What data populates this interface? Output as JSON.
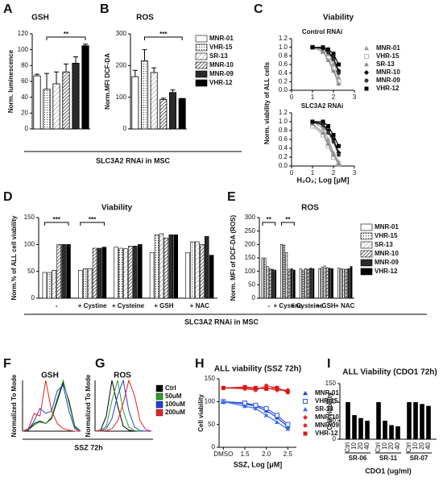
{
  "chart_data": [
    {
      "type": "bar",
      "panel": "A",
      "title": "GSH",
      "ylabel": "Norm. luminescence",
      "values": [
        67,
        50,
        57,
        72,
        83,
        105
      ],
      "errors": [
        2,
        20,
        15,
        10,
        8,
        2
      ],
      "ylim": [
        0,
        120
      ],
      "yticks": [
        0,
        20,
        40,
        60,
        80,
        100,
        120
      ],
      "annotations": [
        "**"
      ],
      "xlabel": "SLC3A2 RNAi in MSC"
    },
    {
      "type": "bar",
      "panel": "B",
      "title": "ROS",
      "ylabel": "Norm.MFI DCF-DA",
      "categories": [
        "MNR-01",
        "VHR-15",
        "SR-13",
        "MNR-10",
        "MNR-09",
        "VHR-12"
      ],
      "values": [
        165,
        215,
        178,
        93,
        115,
        96
      ],
      "errors": [
        20,
        35,
        15,
        4,
        8,
        0
      ],
      "ylim": [
        0,
        300
      ],
      "yticks": [
        0,
        100,
        200,
        300
      ],
      "annotations": [
        "***"
      ]
    },
    {
      "type": "line",
      "panel": "C",
      "title": "Viability",
      "subtitle": "Control RNAi",
      "ylabel": "Norm. viability of ALL cells",
      "x": [
        1,
        1.5,
        1.75,
        2,
        2.25
      ],
      "series": [
        {
          "name": "MNR-01",
          "color": "#9a9a9a",
          "values": [
            1,
            0.95,
            0.85,
            0.6,
            0.3
          ]
        },
        {
          "name": "VHR-15",
          "color": "#b5b5b5",
          "values": [
            1,
            0.9,
            0.75,
            0.5,
            0.2
          ]
        },
        {
          "name": "SR-13",
          "color": "#8a8a8a",
          "values": [
            1,
            0.9,
            0.7,
            0.45,
            0.15
          ]
        },
        {
          "name": "MNR-10",
          "color": "#000000",
          "values": [
            1,
            0.98,
            0.9,
            0.75,
            0.45
          ]
        },
        {
          "name": "MNR-09",
          "color": "#333333",
          "values": [
            1,
            0.97,
            0.88,
            0.72,
            0.4
          ]
        },
        {
          "name": "VHR-12",
          "color": "#000000",
          "values": [
            1,
            1,
            0.95,
            0.85,
            0.6
          ]
        }
      ],
      "xlim": [
        0,
        3
      ],
      "xticks": [
        0,
        1,
        2,
        3
      ],
      "ylim": [
        0,
        1.2
      ],
      "yticks": [
        {
          "value": 0,
          "label": "0.0"
        },
        0.2,
        0.4,
        0.6,
        0.8,
        {
          "value": 1,
          "label": "1.0"
        },
        1.2
      ]
    },
    {
      "type": "line",
      "subtitle": "SLC3A2 RNAi",
      "xlabel": "H₂O₂; Log [μM]",
      "x": [
        1,
        1.5,
        1.75,
        2,
        2.25
      ],
      "series": [
        {
          "color": "#9a9a9a",
          "values": [
            1,
            0.85,
            0.6,
            0.3,
            0.1
          ]
        },
        {
          "color": "#b5b5b5",
          "values": [
            0.9,
            0.7,
            0.45,
            0.2,
            0.05
          ]
        },
        {
          "color": "#8a8a8a",
          "values": [
            0.95,
            0.75,
            0.5,
            0.25,
            0.05
          ]
        },
        {
          "color": "#000000",
          "values": [
            1,
            0.95,
            0.8,
            0.6,
            0.3
          ]
        },
        {
          "color": "#333333",
          "values": [
            1,
            0.92,
            0.75,
            0.55,
            0.25
          ]
        },
        {
          "color": "#000000",
          "values": [
            1,
            1,
            0.9,
            0.7,
            0.45
          ]
        }
      ],
      "xlim": [
        0,
        3
      ],
      "xticks": [
        0,
        1,
        2,
        3
      ],
      "ylim": [
        0,
        1.2
      ],
      "yticks": [
        {
          "value": 0,
          "label": "0.0"
        },
        0.2,
        0.4,
        0.6,
        0.8,
        {
          "value": 1,
          "label": "1.0"
        },
        1.2
      ]
    },
    {
      "type": "bar",
      "panel": "D",
      "title": "Viability",
      "ylabel": "Norm.% of ALL cell viability",
      "categories": [
        "-",
        "+ Cystine",
        "+ Cysteine",
        "+ GSH",
        "+ NAC"
      ],
      "series": [
        {
          "values": [
            48,
            52,
            95,
            85,
            85
          ]
        },
        {
          "values": [
            48,
            55,
            93,
            118,
            105
          ]
        },
        {
          "values": [
            52,
            55,
            92,
            120,
            105
          ]
        },
        {
          "values": [
            100,
            93,
            97,
            112,
            100
          ]
        },
        {
          "values": [
            100,
            93,
            97,
            118,
            115
          ]
        },
        {
          "values": [
            100,
            95,
            100,
            118,
            80
          ]
        }
      ],
      "ylim": [
        0,
        150
      ],
      "yticks": [
        0,
        50,
        100,
        150
      ],
      "annotations": [
        "***",
        "***"
      ],
      "xlabel": "SLC3A2 RNAi in MSC"
    },
    {
      "type": "bar",
      "panel": "E",
      "title": "ROS",
      "ylabel": "Norm. MFI of DCF-DA (ROS)",
      "categories": [
        "-",
        "+ Cystine",
        "+ Cysteine",
        "+ GSH",
        "+ NAC"
      ],
      "series": [
        {
          "name": "MNR-01",
          "values": [
            150,
            200,
            110,
            110,
            112
          ]
        },
        {
          "name": "VHR-15",
          "values": [
            150,
            198,
            105,
            115,
            110
          ]
        },
        {
          "name": "SR-13",
          "values": [
            118,
            170,
            110,
            120,
            108
          ]
        },
        {
          "name": "MNR-10",
          "values": [
            110,
            108,
            108,
            113,
            108
          ]
        },
        {
          "name": "MNR-09",
          "values": [
            107,
            110,
            112,
            112,
            110
          ]
        },
        {
          "name": "VHR-12",
          "values": [
            105,
            105,
            110,
            110,
            118
          ]
        }
      ],
      "ylim": [
        0,
        300
      ],
      "yticks": [
        0,
        50,
        100,
        150,
        200,
        250,
        300
      ],
      "annotations": [
        "**",
        "**"
      ]
    },
    {
      "type": "line",
      "panel": "F",
      "title": "GSH",
      "ylabel": "Normalized To Mode",
      "xlabel": "SSZ 72h",
      "x": [
        0,
        1,
        2,
        3,
        4,
        5,
        6,
        7,
        8,
        9,
        10
      ],
      "series": [
        {
          "color": "#000000",
          "values": [
            0,
            2,
            15,
            20,
            15,
            25,
            60,
            95,
            60,
            10,
            0
          ]
        },
        {
          "color": "#2ca02c",
          "values": [
            0,
            2,
            12,
            18,
            15,
            28,
            65,
            100,
            55,
            8,
            0
          ]
        },
        {
          "color": "#1f3fd6",
          "values": [
            0,
            3,
            20,
            45,
            35,
            40,
            80,
            90,
            40,
            5,
            0
          ]
        },
        {
          "color": "#e8202a",
          "values": [
            0,
            5,
            35,
            30,
            100,
            40,
            15,
            5,
            2,
            0,
            0
          ]
        }
      ],
      "xlim": [
        0,
        10
      ],
      "ylim": [
        0,
        100
      ]
    },
    {
      "type": "line",
      "panel": "G",
      "title": "ROS",
      "ylabel": "Normalized To Mode",
      "x": [
        0,
        1,
        2,
        3,
        4,
        5,
        6,
        7,
        8,
        9,
        10
      ],
      "series": [
        {
          "name": "Ctrl",
          "color": "#000000",
          "values": [
            0,
            2,
            30,
            100,
            50,
            10,
            2,
            0,
            0,
            0,
            0
          ]
        },
        {
          "name": "50uM",
          "color": "#2ca02c",
          "values": [
            0,
            1,
            10,
            60,
            100,
            40,
            8,
            1,
            0,
            0,
            0
          ]
        },
        {
          "name": "100uM",
          "color": "#1f3fd6",
          "values": [
            0,
            0,
            5,
            25,
            70,
            100,
            40,
            8,
            1,
            0,
            0
          ]
        },
        {
          "name": "200uM",
          "color": "#e8202a",
          "values": [
            0,
            0,
            1,
            5,
            20,
            55,
            100,
            70,
            20,
            3,
            0
          ]
        }
      ],
      "xlim": [
        0,
        10
      ],
      "ylim": [
        0,
        100
      ]
    },
    {
      "type": "line",
      "panel": "H",
      "title": "ALL viability (SSZ 72h)",
      "ylabel": "Cell viability",
      "xlabel": "SSZ, Log [μM]",
      "x": [
        1,
        1.5,
        1.75,
        2,
        2.25,
        2.5
      ],
      "series": [
        {
          "name": "MNR-01",
          "color": "#1f3fd6",
          "values": [
            100,
            95,
            90,
            80,
            65,
            45
          ]
        },
        {
          "name": "VHR-15",
          "color": "#2a5be0",
          "values": [
            100,
            97,
            92,
            85,
            70,
            50
          ]
        },
        {
          "name": "SR-13",
          "color": "#3b6ef0",
          "values": [
            100,
            90,
            85,
            70,
            55,
            40
          ]
        },
        {
          "name": "MNR-10",
          "color": "#e8202a",
          "values": [
            130,
            130,
            128,
            130,
            125,
            125
          ]
        },
        {
          "name": "MNR-09",
          "color": "#e03030",
          "values": [
            130,
            128,
            125,
            135,
            130,
            120
          ]
        },
        {
          "name": "VHR-12",
          "color": "#d81818",
          "values": [
            130,
            132,
            130,
            128,
            130,
            122
          ]
        }
      ],
      "xlim": [
        0.9,
        2.7
      ],
      "xticks": [
        {
          "value": 1,
          "label": "DMSO"
        },
        1.5,
        {
          "value": 2,
          "label": "2.0"
        },
        2.5
      ],
      "ylim": [
        0,
        150
      ],
      "yticks": [
        0,
        50,
        100,
        150
      ]
    },
    {
      "type": "bar",
      "panel": "I",
      "title": "ALL Viability (CDO1 72h)",
      "ylabel": "Cell viability",
      "xlabel": "CDO1 (ug/ml)",
      "categories": [
        "Ctrl",
        "10",
        "20",
        "40",
        "Ctrl",
        "10",
        "20",
        "40",
        "Ctrl",
        "10",
        "20",
        "40"
      ],
      "groups": [
        "SR-06",
        "SR-11",
        "SR-07"
      ],
      "values": [
        100,
        65,
        57,
        50,
        100,
        50,
        38,
        35,
        100,
        100,
        95,
        90
      ],
      "color": "#000000",
      "ylim": [
        0,
        150
      ],
      "yticks": [
        0,
        50,
        100,
        150
      ]
    }
  ]
}
